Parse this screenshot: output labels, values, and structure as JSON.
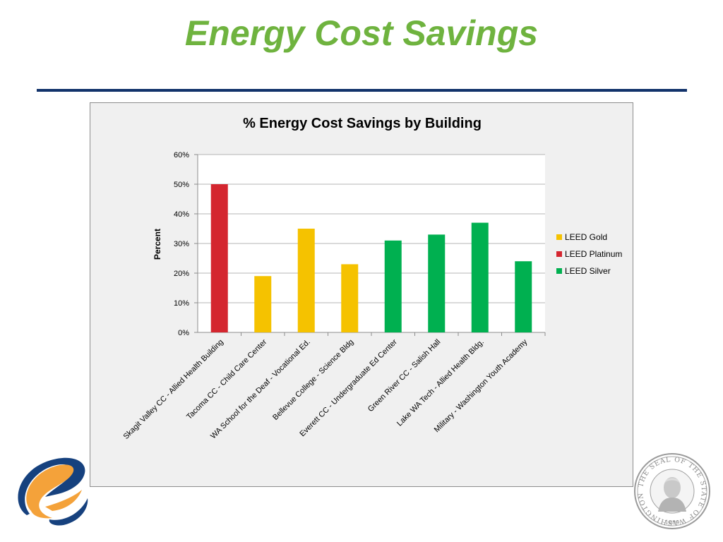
{
  "slide": {
    "title": "Energy Cost Savings"
  },
  "colors": {
    "title_green": "#6fb33f",
    "rule_navy": "#12336b",
    "gold": "#f5c200",
    "platinum": "#d4262f",
    "silver": "#00b050"
  },
  "chart_data": {
    "type": "bar",
    "title": "% Energy Cost Savings by Building",
    "xlabel": "",
    "ylabel": "Percent",
    "ylim": [
      0,
      60
    ],
    "yticks": [
      "0%",
      "10%",
      "20%",
      "30%",
      "40%",
      "50%",
      "60%"
    ],
    "grid": true,
    "legend_position": "right",
    "categories": [
      "Skagit Valley CC - Allied Health Building",
      "Tacoma CC - Child Care Center",
      "WA School for the Deaf - Vocational Ed.",
      "Bellevue College - Science Bldg",
      "Everett CC - Undergraduate Ed Center",
      "Green River CC - Salish Hall",
      "Lake WA Tech - Allied Health Bldg.",
      "Military - Washington Youth Academy"
    ],
    "values": [
      50,
      19,
      35,
      23,
      31,
      33,
      37,
      24
    ],
    "groups": [
      "LEED Platinum",
      "LEED Gold",
      "LEED Gold",
      "LEED Gold",
      "LEED Silver",
      "LEED Silver",
      "LEED Silver",
      "LEED Silver"
    ],
    "legend": [
      {
        "name": "LEED Gold",
        "color": "#f5c200"
      },
      {
        "name": "LEED Platinum",
        "color": "#d4262f"
      },
      {
        "name": "LEED Silver",
        "color": "#00b050"
      }
    ]
  },
  "icons": {
    "logo": "orange-swoosh-logo-icon",
    "seal": "washington-state-seal-icon",
    "seal_text_top": "THE SEAL OF THE STATE OF WASHINGTON",
    "seal_year": "1889"
  }
}
